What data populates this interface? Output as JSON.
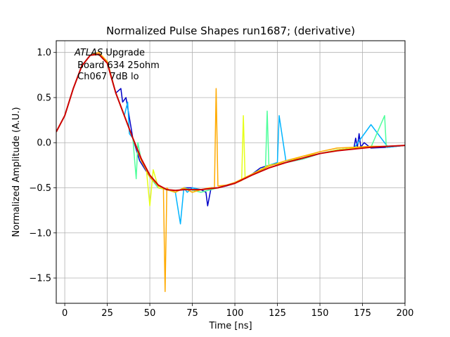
{
  "chart_data": {
    "type": "line",
    "title": "Normalized Pulse Shapes run1687; (derivative)",
    "xlabel": "Time [ns]",
    "ylabel": "Normalized Amplitude (A.U.)",
    "xlim": [
      -5,
      200
    ],
    "ylim": [
      -1.78,
      1.13
    ],
    "xticks": [
      0,
      25,
      50,
      75,
      100,
      125,
      150,
      175,
      200
    ],
    "yticks": [
      -1.5,
      -1.0,
      -0.5,
      0.0,
      0.5,
      1.0
    ],
    "xtick_labels": [
      "0",
      "25",
      "50",
      "75",
      "100",
      "125",
      "150",
      "175",
      "200"
    ],
    "ytick_labels": [
      "−1.5",
      "−1.0",
      "−0.5",
      "0.0",
      "0.5",
      "1.0"
    ],
    "grid": true,
    "annotation": {
      "lines": [
        "ATLAS Upgrade",
        " Board 634 25ohm",
        " Ch067 7dB lo"
      ],
      "italic_word": "ATLAS",
      "rest_first_line": " Upgrade"
    },
    "series": [
      {
        "color": "#0000c8",
        "x": [
          -5,
          0,
          5,
          10,
          15,
          20,
          25,
          30,
          33,
          34,
          36,
          40,
          44,
          50,
          55,
          60,
          65,
          70,
          75,
          80,
          83,
          84,
          86,
          90,
          95,
          100,
          105,
          110,
          115,
          120,
          130,
          140,
          150,
          160,
          170,
          171,
          172,
          173,
          174,
          176,
          180,
          190,
          200
        ],
        "y": [
          0.12,
          0.3,
          0.6,
          0.85,
          0.97,
          0.98,
          0.9,
          0.55,
          0.6,
          0.45,
          0.5,
          0.05,
          -0.2,
          -0.38,
          -0.5,
          -0.52,
          -0.55,
          -0.5,
          -0.5,
          -0.52,
          -0.55,
          -0.7,
          -0.5,
          -0.5,
          -0.48,
          -0.45,
          -0.4,
          -0.35,
          -0.28,
          -0.25,
          -0.22,
          -0.18,
          -0.12,
          -0.08,
          -0.06,
          0.05,
          -0.05,
          0.1,
          -0.05,
          0.0,
          -0.06,
          -0.05,
          -0.03
        ]
      },
      {
        "color": "#00b4ff",
        "x": [
          -5,
          0,
          5,
          10,
          15,
          20,
          25,
          30,
          35,
          37,
          38,
          40,
          45,
          50,
          55,
          60,
          65,
          68,
          70,
          72,
          75,
          80,
          90,
          100,
          110,
          120,
          125,
          126,
          130,
          140,
          150,
          160,
          170,
          180,
          190,
          200
        ],
        "y": [
          0.12,
          0.3,
          0.6,
          0.85,
          0.97,
          0.98,
          0.9,
          0.55,
          0.3,
          0.45,
          0.1,
          0.05,
          -0.2,
          -0.38,
          -0.5,
          -0.52,
          -0.55,
          -0.9,
          -0.5,
          -0.55,
          -0.5,
          -0.52,
          -0.5,
          -0.45,
          -0.35,
          -0.25,
          -0.22,
          0.3,
          -0.2,
          -0.18,
          -0.12,
          -0.08,
          -0.06,
          0.2,
          -0.05,
          -0.03
        ]
      },
      {
        "color": "#50ff9c",
        "x": [
          -5,
          0,
          5,
          10,
          15,
          20,
          25,
          30,
          35,
          40,
          42,
          43,
          45,
          50,
          55,
          60,
          65,
          70,
          80,
          90,
          100,
          110,
          118,
          119,
          120,
          130,
          140,
          150,
          160,
          170,
          180,
          188,
          189,
          190,
          200
        ],
        "y": [
          0.12,
          0.3,
          0.6,
          0.85,
          0.97,
          0.98,
          0.9,
          0.55,
          0.3,
          0.05,
          -0.4,
          0.0,
          -0.2,
          -0.38,
          -0.5,
          -0.52,
          -0.55,
          -0.5,
          -0.55,
          -0.5,
          -0.45,
          -0.35,
          -0.28,
          0.35,
          -0.25,
          -0.22,
          -0.18,
          -0.12,
          -0.08,
          -0.06,
          -0.05,
          0.3,
          -0.05,
          -0.04,
          -0.03
        ]
      },
      {
        "color": "#e6ff18",
        "x": [
          -5,
          0,
          5,
          10,
          15,
          20,
          25,
          30,
          35,
          40,
          45,
          48,
          50,
          52,
          55,
          60,
          65,
          70,
          75,
          80,
          90,
          100,
          104,
          105,
          106,
          110,
          120,
          130,
          140,
          150,
          160,
          170,
          180,
          190,
          200
        ],
        "y": [
          0.12,
          0.3,
          0.6,
          0.85,
          0.97,
          0.98,
          0.9,
          0.55,
          0.3,
          0.05,
          -0.2,
          -0.3,
          -0.7,
          -0.3,
          -0.5,
          -0.52,
          -0.55,
          -0.5,
          -0.55,
          -0.52,
          -0.5,
          -0.45,
          -0.42,
          0.3,
          -0.4,
          -0.35,
          -0.25,
          -0.22,
          -0.15,
          -0.12,
          -0.08,
          -0.06,
          -0.05,
          -0.04,
          -0.03
        ]
      },
      {
        "color": "#ffaa00",
        "x": [
          -5,
          0,
          5,
          10,
          15,
          20,
          25,
          30,
          35,
          40,
          45,
          50,
          55,
          58,
          59,
          60,
          61,
          65,
          70,
          75,
          80,
          85,
          88,
          89,
          90,
          95,
          100,
          110,
          120,
          130,
          140,
          150,
          160,
          170,
          180,
          190,
          200
        ],
        "y": [
          0.12,
          0.3,
          0.6,
          0.85,
          0.97,
          1.0,
          0.9,
          0.55,
          0.3,
          0.05,
          -0.2,
          -0.38,
          -0.48,
          -0.5,
          -1.65,
          -0.5,
          -0.52,
          -0.55,
          -0.5,
          -0.55,
          -0.52,
          -0.5,
          -0.5,
          0.6,
          -0.48,
          -0.47,
          -0.44,
          -0.35,
          -0.26,
          -0.2,
          -0.15,
          -0.1,
          -0.06,
          -0.05,
          -0.04,
          -0.04,
          -0.03
        ]
      },
      {
        "color": "#cc0000",
        "x": [
          -5,
          0,
          5,
          10,
          15,
          20,
          25,
          30,
          35,
          40,
          45,
          50,
          55,
          60,
          65,
          70,
          75,
          80,
          90,
          100,
          110,
          120,
          130,
          140,
          150,
          160,
          170,
          180,
          190,
          200
        ],
        "y": [
          0.12,
          0.3,
          0.6,
          0.85,
          0.97,
          0.98,
          0.88,
          0.55,
          0.3,
          0.05,
          -0.18,
          -0.36,
          -0.47,
          -0.52,
          -0.53,
          -0.52,
          -0.52,
          -0.52,
          -0.5,
          -0.45,
          -0.36,
          -0.28,
          -0.22,
          -0.17,
          -0.12,
          -0.09,
          -0.07,
          -0.05,
          -0.04,
          -0.03
        ]
      }
    ]
  }
}
